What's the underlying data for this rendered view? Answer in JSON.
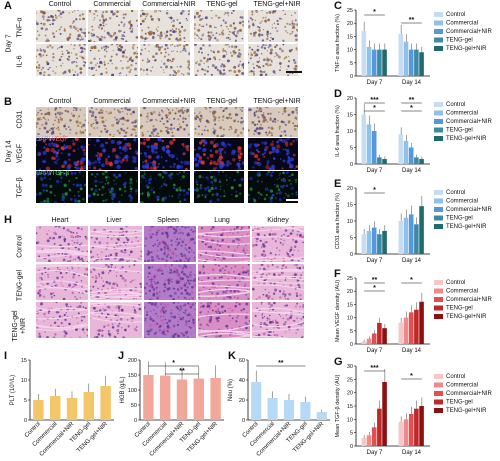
{
  "panels": {
    "A": "A",
    "B": "B",
    "C": "C",
    "D": "D",
    "E": "E",
    "F": "F",
    "G": "G",
    "H": "H",
    "I": "I",
    "J": "J",
    "K": "K"
  },
  "groups": [
    "Control",
    "Commercial",
    "Commercial+NIR",
    "TENG-gel",
    "TENG-gel+NIR"
  ],
  "panelA": {
    "day": "Day 7",
    "rows": [
      "TNF-α",
      "IL-6"
    ]
  },
  "panelB": {
    "day": "Day 14",
    "rows": [
      "CD31",
      "VEGF",
      "TGF-β"
    ],
    "vegf_stain_a": "DAPI",
    "vegf_stain_b": "VEGF",
    "tgf_stain_a": "DAPI",
    "tgf_stain_b": "TGF-β"
  },
  "panelH": {
    "cols": [
      "Heart",
      "Liver",
      "Spleen",
      "Lung",
      "Kidney"
    ],
    "rows": [
      "Control",
      "TENG-gel",
      "TENG-gel\n+NIR"
    ]
  },
  "colors": {
    "blue": [
      "#c6dcf2",
      "#8fc1ea",
      "#5599dc",
      "#3c8aa6",
      "#1f6b6e"
    ],
    "red": [
      "#f7c7c7",
      "#f08a8a",
      "#e05050",
      "#c02828",
      "#8c1010"
    ]
  },
  "chart_data": [
    {
      "id": "C",
      "type": "bar",
      "ylabel": "TNF-α area fraction (%)",
      "ylim": [
        0,
        25
      ],
      "yticks": [
        0,
        5,
        10,
        15,
        20,
        25
      ],
      "categories": [
        "Day 7",
        "Day 14"
      ],
      "series": [
        {
          "name": "Control",
          "values": [
            17,
            16
          ]
        },
        {
          "name": "Commercial",
          "values": [
            11,
            13
          ]
        },
        {
          "name": "Commercial+NIR",
          "values": [
            10,
            10
          ]
        },
        {
          "name": "TENG-gel",
          "values": [
            10,
            10
          ]
        },
        {
          "name": "TENG-gel+NIR",
          "values": [
            10,
            9
          ]
        }
      ],
      "annotations": [
        "*",
        "**"
      ]
    },
    {
      "id": "D",
      "type": "bar",
      "ylabel": "IL-6 area fraction (%)",
      "ylim": [
        0,
        20
      ],
      "yticks": [
        0,
        5,
        10,
        15,
        20
      ],
      "categories": [
        "Day 7",
        "Day 14"
      ],
      "series": [
        {
          "name": "Control",
          "values": [
            15,
            9
          ]
        },
        {
          "name": "Commercial",
          "values": [
            12,
            7
          ]
        },
        {
          "name": "Commercial+NIR",
          "values": [
            10,
            5
          ]
        },
        {
          "name": "TENG-gel",
          "values": [
            2,
            2
          ]
        },
        {
          "name": "TENG-gel+NIR",
          "values": [
            1.5,
            1.5
          ]
        }
      ],
      "annotations": [
        "***",
        "*",
        "**",
        "*"
      ]
    },
    {
      "id": "E",
      "type": "bar",
      "ylabel": "CD31 area fraction (%)",
      "ylim": [
        0,
        20
      ],
      "yticks": [
        0,
        5,
        10,
        15,
        20
      ],
      "categories": [
        "Day 7",
        "Day 14"
      ],
      "series": [
        {
          "name": "Control",
          "values": [
            6,
            10
          ]
        },
        {
          "name": "Commercial",
          "values": [
            7,
            11
          ]
        },
        {
          "name": "Commercial+NIR",
          "values": [
            8,
            12
          ]
        },
        {
          "name": "TENG-gel",
          "values": [
            6,
            9
          ]
        },
        {
          "name": "TENG-gel+NIR",
          "values": [
            7,
            14.5
          ]
        }
      ],
      "annotations": [
        "*"
      ]
    },
    {
      "id": "F",
      "type": "bar",
      "ylabel": "Mean VEGF density (AU)",
      "ylim": [
        0,
        25
      ],
      "yticks": [
        0,
        5,
        10,
        15,
        20,
        25
      ],
      "categories": [
        "Day 7",
        "Day 14"
      ],
      "series": [
        {
          "name": "Control",
          "values": [
            1,
            8
          ]
        },
        {
          "name": "Commercial",
          "values": [
            2,
            10
          ]
        },
        {
          "name": "Commercial+NIR",
          "values": [
            4,
            12
          ]
        },
        {
          "name": "TENG-gel",
          "values": [
            8,
            13
          ]
        },
        {
          "name": "TENG-gel+NIR",
          "values": [
            6,
            16
          ]
        }
      ],
      "annotations": [
        "**",
        "*",
        "*"
      ]
    },
    {
      "id": "G",
      "type": "bar",
      "ylabel": "Mean TGF-β density (AU)",
      "ylim": [
        0,
        30
      ],
      "yticks": [
        0,
        5,
        10,
        15,
        20,
        25,
        30
      ],
      "categories": [
        "Day 7",
        "Day 14"
      ],
      "series": [
        {
          "name": "Control",
          "values": [
            3,
            9
          ]
        },
        {
          "name": "Commercial",
          "values": [
            4,
            10
          ]
        },
        {
          "name": "Commercial+NIR",
          "values": [
            7,
            12
          ]
        },
        {
          "name": "TENG-gel",
          "values": [
            14,
            14
          ]
        },
        {
          "name": "TENG-gel+NIR",
          "values": [
            24,
            15
          ]
        }
      ],
      "annotations": [
        "***",
        "*"
      ]
    },
    {
      "id": "I",
      "type": "bar",
      "ylabel": "PLT (10⁹/L)",
      "ylim": [
        0,
        15
      ],
      "yticks": [
        0,
        5,
        10,
        15
      ],
      "categories": [
        "Control",
        "Commercial",
        "Commercial+NIR",
        "TENG-gel",
        "TENG-gel+NIR"
      ],
      "values": [
        5,
        6,
        5.5,
        7,
        8.5
      ]
    },
    {
      "id": "J",
      "type": "bar",
      "ylabel": "HGB (g/L)",
      "ylim": [
        0,
        200
      ],
      "yticks": [
        0,
        50,
        100,
        150,
        200
      ],
      "categories": [
        "Control",
        "Commercial",
        "Commercial+NIR",
        "TENG-gel",
        "TENG-gel+NIR"
      ],
      "values": [
        150,
        148,
        135,
        138,
        140
      ],
      "annotations": [
        "*",
        "**"
      ]
    },
    {
      "id": "K",
      "type": "bar",
      "ylabel": "Neu (%)",
      "ylim": [
        0,
        60
      ],
      "yticks": [
        0,
        20,
        40,
        60
      ],
      "categories": [
        "Control",
        "Commercial",
        "Commercial+NIR",
        "TENG-gel",
        "TENG-gel+NIR"
      ],
      "values": [
        38,
        22,
        20,
        18,
        8
      ],
      "annotations": [
        "**"
      ]
    }
  ]
}
